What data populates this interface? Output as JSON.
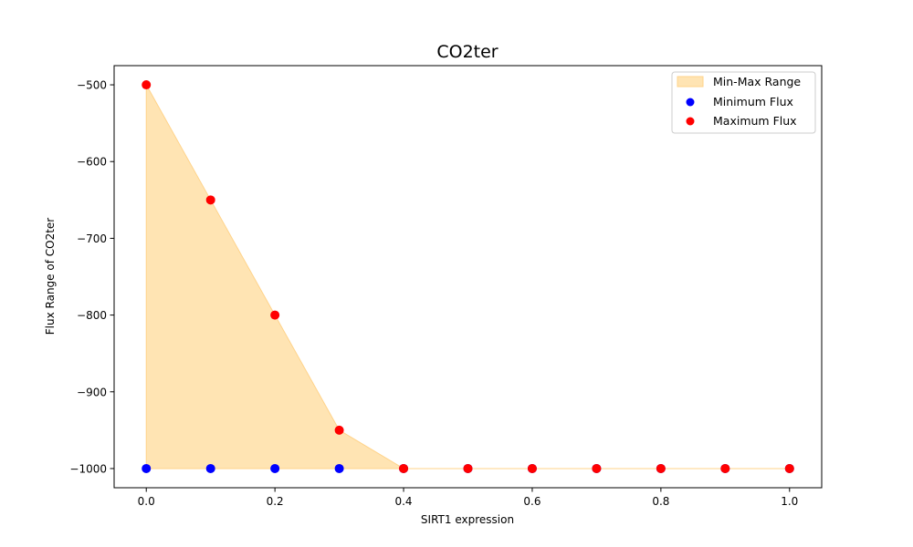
{
  "chart_data": {
    "type": "scatter",
    "title": "CO2ter",
    "xlabel": "SIRT1 expression",
    "ylabel": "Flux Range of CO2ter",
    "x": [
      0.0,
      0.1,
      0.2,
      0.3,
      0.4,
      0.5,
      0.6,
      0.7,
      0.8,
      0.9,
      1.0
    ],
    "xlim": [
      -0.05,
      1.05
    ],
    "ylim": [
      -1025,
      -475
    ],
    "xticks": [
      0.0,
      0.2,
      0.4,
      0.6,
      0.8,
      1.0
    ],
    "xtick_labels": [
      "0.0",
      "0.2",
      "0.4",
      "0.6",
      "0.8",
      "1.0"
    ],
    "yticks": [
      -500,
      -600,
      -700,
      -800,
      -900,
      -1000
    ],
    "ytick_labels": [
      "−500",
      "−600",
      "−700",
      "−800",
      "−900",
      "−1000"
    ],
    "grid": false,
    "legend_position": "top-right",
    "fill": {
      "name": "Min-Max Range",
      "color": "#ffe4b3",
      "edge_color": "#ffd38a"
    },
    "series": [
      {
        "name": "Minimum Flux",
        "color": "#0000ff",
        "values": [
          -1000,
          -1000,
          -1000,
          -1000,
          -1000,
          -1000,
          -1000,
          -1000,
          -1000,
          -1000,
          -1000
        ]
      },
      {
        "name": "Maximum Flux",
        "color": "#ff0000",
        "values": [
          -500,
          -650,
          -800,
          -950,
          -1000,
          -1000,
          -1000,
          -1000,
          -1000,
          -1000,
          -1000
        ]
      }
    ]
  }
}
